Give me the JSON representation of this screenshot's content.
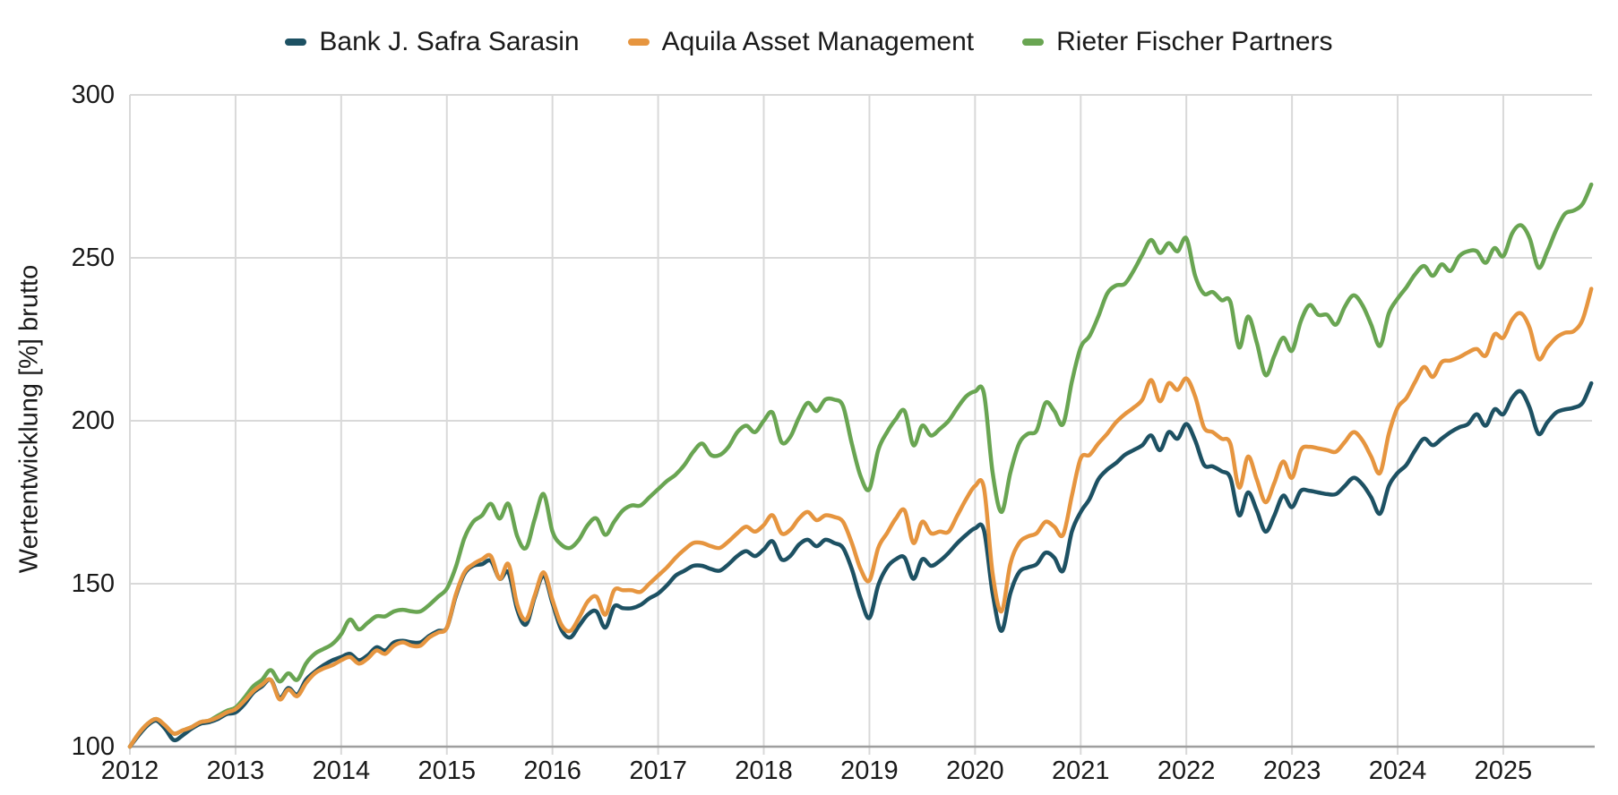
{
  "chart_data": {
    "type": "line",
    "title": "",
    "xlabel": "",
    "ylabel": "Wertentwicklung [%] brutto",
    "x_ticks": [
      2012,
      2013,
      2014,
      2015,
      2016,
      2017,
      2018,
      2019,
      2020,
      2021,
      2022,
      2023,
      2024,
      2025
    ],
    "y_ticks": [
      100,
      150,
      200,
      250,
      300
    ],
    "xlim": [
      2012,
      2025.84
    ],
    "ylim": [
      100,
      300
    ],
    "grid": true,
    "legend_position": "top-center",
    "x_start": 2012.0,
    "x_step": 0.0833333,
    "x_unit": "year (monthly samples)",
    "grid_color": "#d9d9d9",
    "axis_color": "#9e9e9e",
    "text_color": "#1a1a1a",
    "series": [
      {
        "name": "Bank J. Safra Sarasin",
        "color": "#1d5163",
        "values": [
          100,
          103.5,
          106.5,
          108,
          105.5,
          102,
          103.5,
          105.5,
          107,
          107.5,
          108.5,
          110,
          110.5,
          113,
          116.5,
          118.5,
          120.5,
          115,
          118,
          116,
          120.5,
          123,
          125,
          126.5,
          127.5,
          128.5,
          126.5,
          128,
          130.5,
          129.5,
          132,
          132.5,
          132,
          132,
          134,
          135.5,
          136.5,
          146,
          153,
          155.5,
          156,
          157,
          151.5,
          153.5,
          142,
          137.5,
          146,
          152.5,
          144,
          136,
          133.5,
          137,
          140.5,
          141.5,
          136.5,
          143,
          142.5,
          142.5,
          143.5,
          145.5,
          147,
          149.5,
          152.5,
          154,
          155.5,
          155.5,
          154.5,
          154,
          156,
          158.5,
          160,
          158.5,
          160.5,
          163,
          157.5,
          158.5,
          162,
          163.5,
          161.5,
          163.5,
          162.5,
          161,
          154.5,
          145.5,
          139.5,
          149.5,
          155,
          157.5,
          158,
          151.5,
          157.5,
          155.5,
          157,
          159.5,
          162.5,
          165,
          167,
          166.5,
          147,
          135.5,
          147,
          153.5,
          155,
          156,
          159.5,
          158,
          154,
          166,
          172,
          176,
          182,
          185,
          187,
          189.5,
          191,
          192.5,
          195.5,
          191,
          196.5,
          194.5,
          199,
          194,
          186.5,
          186,
          184.5,
          182.5,
          171,
          178,
          172.5,
          166,
          171,
          177,
          173.5,
          178.5,
          178.5,
          178,
          177.5,
          177.5,
          180,
          182.5,
          180.5,
          176.5,
          171.5,
          180,
          184,
          186.5,
          191,
          194.5,
          192.5,
          194.5,
          196.5,
          198,
          199,
          202,
          198.5,
          203.5,
          202,
          207,
          209,
          204,
          196,
          199.5,
          202.5,
          203.5,
          204,
          205.5,
          211.5
        ]
      },
      {
        "name": "Aquila Asset Management",
        "color": "#e6953f",
        "values": [
          100,
          104,
          107,
          108.5,
          106.5,
          104,
          105,
          106,
          107.5,
          108,
          109,
          110.5,
          111.5,
          114,
          117,
          119,
          120.5,
          114.5,
          117.5,
          115.5,
          119.5,
          122.5,
          124,
          125,
          126.5,
          127.5,
          125.5,
          127,
          129.5,
          128.5,
          131,
          132,
          131,
          131,
          133.5,
          135,
          136.5,
          146.5,
          153.5,
          156,
          157.5,
          158.5,
          151.5,
          156,
          143.5,
          139,
          146.5,
          153.5,
          145,
          137.5,
          135.5,
          139.5,
          144.5,
          146,
          140.5,
          148,
          148,
          148,
          147.5,
          150,
          152.5,
          155,
          158,
          160.5,
          162.5,
          162.5,
          161.5,
          161,
          163,
          165.5,
          167.5,
          166,
          168,
          171,
          165.5,
          166.5,
          170,
          172,
          169.5,
          171,
          170.5,
          169,
          162.5,
          154.5,
          151,
          161,
          165.5,
          170,
          172.5,
          162.5,
          169,
          165.5,
          166,
          166,
          171,
          176,
          180,
          179.5,
          153,
          141.5,
          156,
          162.5,
          164.5,
          165.5,
          169,
          167.5,
          165,
          177,
          188.5,
          189.5,
          193,
          196,
          199.5,
          202,
          204,
          206.5,
          212.5,
          206,
          211.5,
          209.5,
          213,
          207.5,
          198,
          196.5,
          194.5,
          193,
          179.5,
          189,
          182,
          175,
          181,
          187.5,
          182.5,
          191,
          192,
          191.5,
          191,
          190.5,
          193.5,
          196.5,
          194,
          189,
          184,
          196,
          204,
          207,
          212,
          216.5,
          213.5,
          218,
          218.5,
          219.5,
          221,
          222,
          220,
          226.5,
          225.5,
          231,
          233,
          228.5,
          219,
          222.5,
          225.5,
          227,
          227.5,
          231,
          240.5
        ]
      },
      {
        "name": "Rieter Fischer Partners",
        "color": "#69a552",
        "values": [
          100,
          104,
          107,
          108.5,
          106.5,
          104,
          105,
          106,
          107.5,
          108,
          109.5,
          111,
          112,
          115,
          118.5,
          120.5,
          123.5,
          120,
          122.5,
          120.5,
          125.5,
          128.5,
          130,
          131.5,
          134.5,
          139,
          136,
          138,
          140,
          140,
          141.5,
          142,
          141.5,
          141.5,
          143.5,
          146,
          148.5,
          155,
          164,
          169,
          171,
          174.5,
          170,
          174.5,
          164.5,
          161,
          170,
          177.5,
          166,
          162,
          161,
          163.5,
          168,
          170,
          165,
          169,
          172.5,
          174,
          174,
          176.5,
          179,
          181.5,
          183.5,
          186.5,
          190.5,
          193,
          189.5,
          189.5,
          192,
          196.5,
          198.5,
          196.5,
          200,
          202.5,
          193.5,
          195,
          201,
          205.5,
          203,
          206.5,
          206.5,
          204.5,
          193,
          183,
          179,
          191,
          196.5,
          200.5,
          203,
          192.5,
          198.5,
          195.5,
          197.5,
          200,
          204,
          207.5,
          209,
          208.5,
          184,
          172,
          184,
          193,
          196,
          197,
          205.5,
          203,
          199,
          212,
          222.5,
          226,
          232,
          239,
          241.5,
          242,
          246,
          251,
          255.5,
          251.5,
          254.5,
          252,
          256,
          244.5,
          239,
          239.5,
          237,
          236.5,
          222.5,
          232,
          224,
          214,
          220,
          225.5,
          221.5,
          230.5,
          235.5,
          232.5,
          232.5,
          229.5,
          235,
          238.5,
          235.5,
          229.5,
          223,
          233,
          237.5,
          241,
          245,
          247.5,
          244.5,
          248,
          246,
          250.5,
          252,
          252,
          248.5,
          253,
          250.5,
          257.5,
          260,
          256,
          247,
          252,
          258.5,
          263.5,
          264.5,
          266.5,
          272.5
        ]
      }
    ]
  }
}
